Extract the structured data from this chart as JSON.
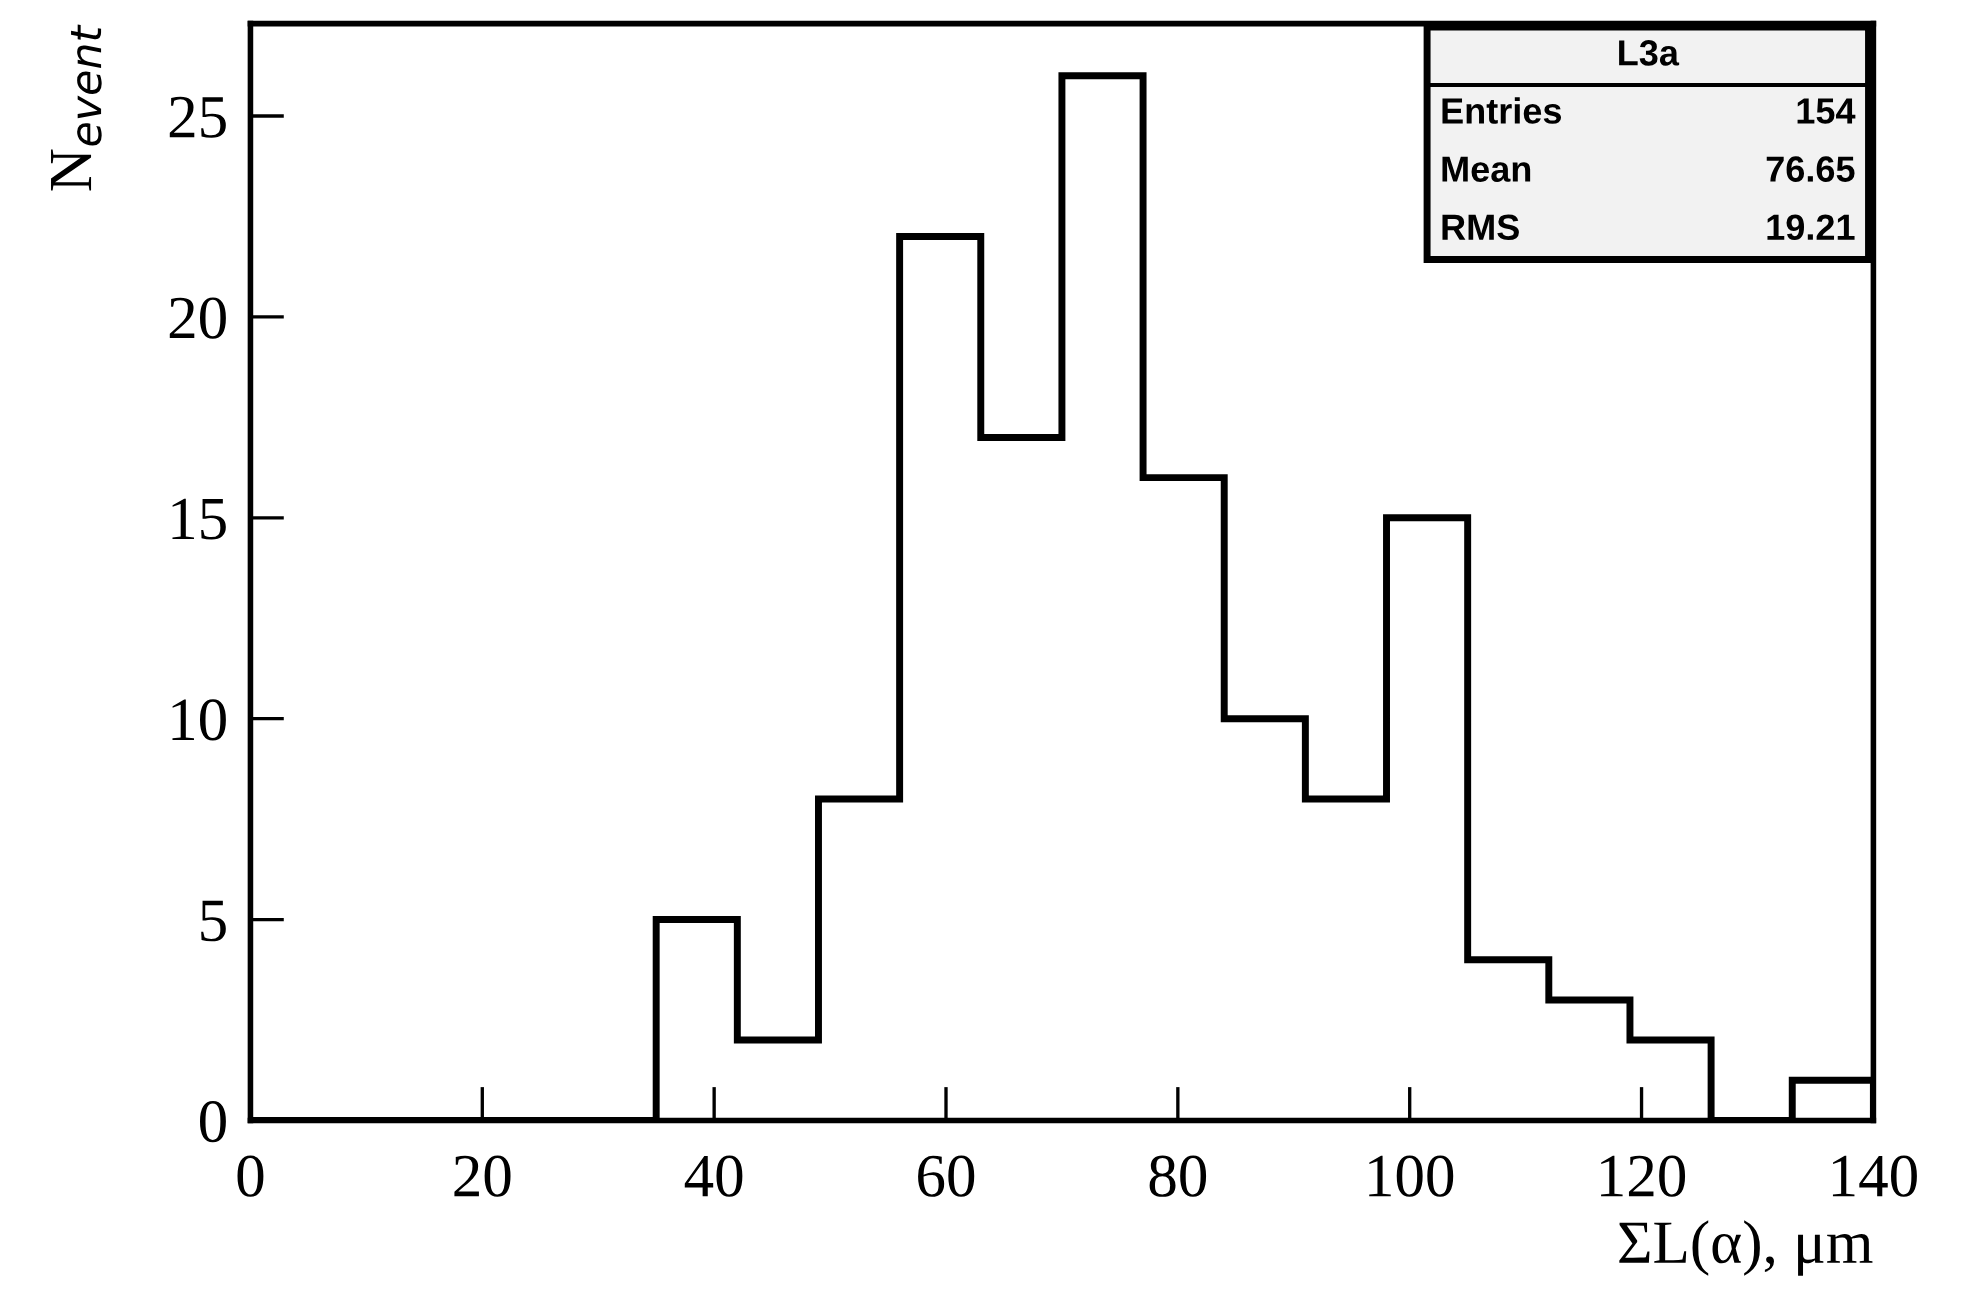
{
  "chart_data": {
    "type": "histogram",
    "xlabel": "ΣL(α), μm",
    "ylabel": "N$_{event}$",
    "bins": [
      0,
      7,
      14,
      21,
      28,
      35,
      42,
      49,
      56,
      63,
      70,
      77,
      84,
      91,
      98,
      105,
      112,
      119,
      126,
      133,
      140
    ],
    "values": [
      0,
      0,
      0,
      0,
      0,
      5,
      2,
      8,
      22,
      17,
      26,
      16,
      10,
      8,
      15,
      4,
      3,
      2,
      0,
      1
    ],
    "color": "#000000",
    "xlim": [
      0,
      140
    ],
    "xticks": [
      0,
      20,
      40,
      60,
      80,
      100,
      120,
      140
    ],
    "ylim": [
      0,
      27.3
    ],
    "yticks": [
      0,
      5,
      10,
      15,
      20,
      25
    ],
    "grid": false,
    "legend": false,
    "annotations": [
      "L3a",
      "Entries",
      "154",
      "Mean",
      "76.65",
      "RMS",
      "19.21"
    ]
  }
}
